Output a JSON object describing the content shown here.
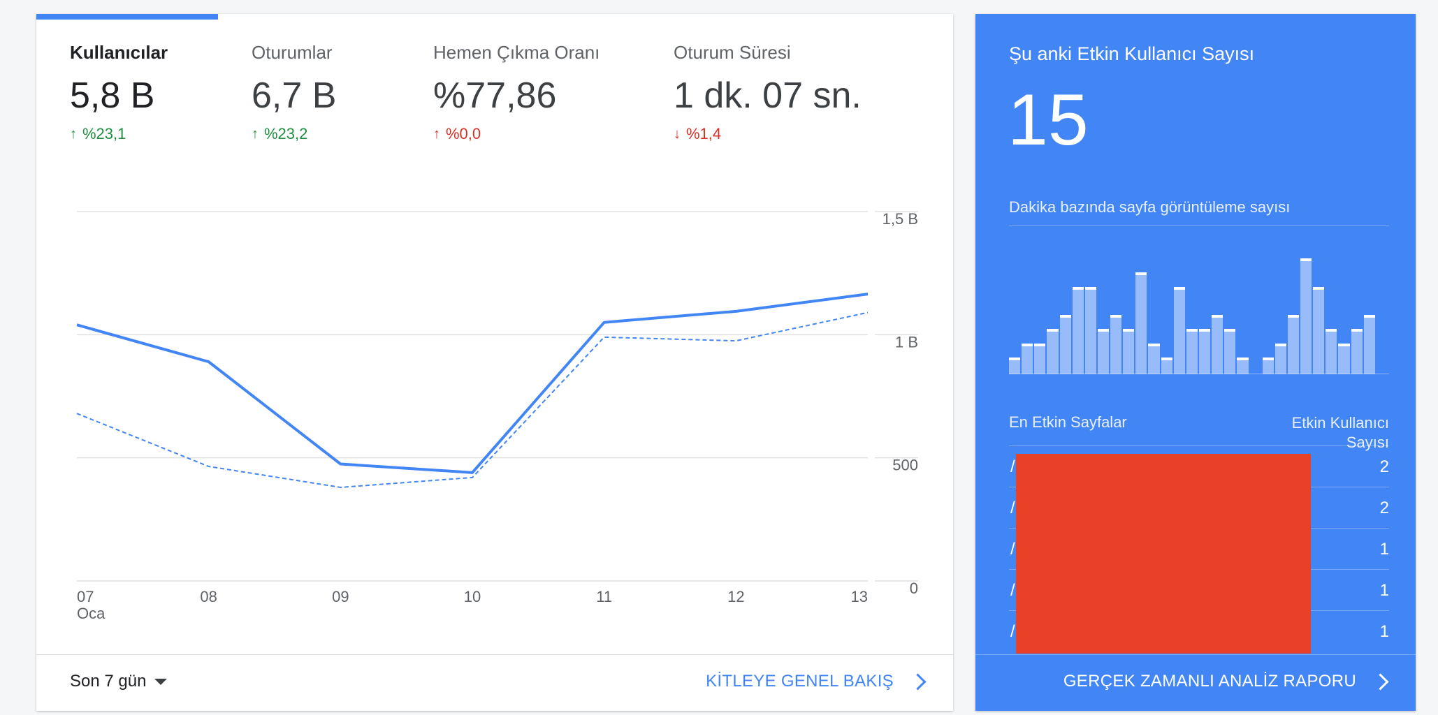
{
  "metrics": [
    {
      "label": "Kullanıcılar",
      "value": "5,8 B",
      "change": "%23,1",
      "direction": "up",
      "tone": "good"
    },
    {
      "label": "Oturumlar",
      "value": "6,7 B",
      "change": "%23,2",
      "direction": "up",
      "tone": "good"
    },
    {
      "label": "Hemen Çıkma Oranı",
      "value": "%77,86",
      "change": "%0,0",
      "direction": "up",
      "tone": "bad"
    },
    {
      "label": "Oturum Süresi",
      "value": "1 dk. 07 sn.",
      "change": "%1,4",
      "direction": "down",
      "tone": "bad"
    }
  ],
  "chart_data": {
    "type": "line",
    "x": [
      "07",
      "08",
      "09",
      "10",
      "11",
      "12",
      "13"
    ],
    "x_sublabel": "Oca",
    "ytick_labels": [
      "0",
      "500",
      "1 B",
      "1,5 B"
    ],
    "ytick_values": [
      0,
      500,
      1000,
      1500
    ],
    "ylim": [
      0,
      1500
    ],
    "series": [
      {
        "style": "solid",
        "values": [
          1040,
          890,
          475,
          440,
          1050,
          1095,
          1165
        ]
      },
      {
        "style": "dashed",
        "values": [
          680,
          465,
          380,
          420,
          990,
          975,
          1090
        ]
      }
    ],
    "colors": {
      "line": "#4285f4",
      "grid": "#e0e0e0",
      "axis_text": "#5f6368"
    }
  },
  "footer": {
    "range_label": "Son 7 gün",
    "audience_link": "KİTLEYE GENEL BAKIŞ"
  },
  "realtime": {
    "title": "Şu anki Etkin Kullanıcı Sayısı",
    "count": "15",
    "pageviews_label": "Dakika bazında sayfa görüntüleme sayısı",
    "pageviews_per_minute": [
      1,
      2,
      2,
      3,
      4,
      6,
      6,
      3,
      4,
      3,
      7,
      2,
      1,
      6,
      3,
      3,
      4,
      3,
      1,
      0,
      1,
      2,
      4,
      8,
      6,
      3,
      2,
      3,
      4,
      0
    ],
    "table_header_pages": "En Etkin Sayfalar",
    "table_header_users": "Etkin Kullanıcı Sayısı",
    "top_pages": [
      {
        "page": "/",
        "users": "2"
      },
      {
        "page": "/",
        "users": "2"
      },
      {
        "page": "/",
        "users": "1"
      },
      {
        "page": "/",
        "users": "1"
      },
      {
        "page": "/",
        "users": "1"
      }
    ],
    "report_link": "GERÇEK ZAMANLI ANALİZ RAPORU"
  },
  "colors": {
    "accent": "#4285f4",
    "good": "#1e8e3e",
    "bad": "#d93025",
    "redaction": "#e94128"
  }
}
